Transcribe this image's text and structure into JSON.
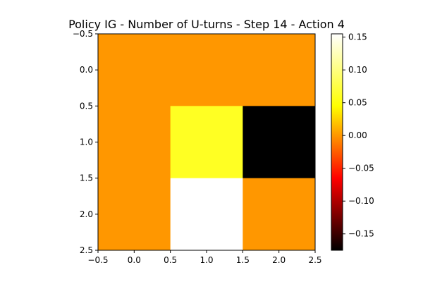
{
  "chart_data": {
    "type": "heatmap",
    "title": "Policy IG - Number of U-turns - Step 14 - Action 4",
    "xlabel": "",
    "ylabel": "",
    "x_ticks": [
      "−0.5",
      "0.0",
      "0.5",
      "1.0",
      "1.5",
      "2.0",
      "2.5"
    ],
    "y_ticks": [
      "−0.5",
      "0.0",
      "0.5",
      "1.0",
      "1.5",
      "2.0",
      "2.5"
    ],
    "xlim": [
      -0.5,
      2.5
    ],
    "ylim": [
      2.5,
      -0.5
    ],
    "grid": false,
    "rows": [
      0,
      1,
      2
    ],
    "cols": [
      0,
      1,
      2
    ],
    "values": [
      [
        0.0,
        0.0,
        0.0
      ],
      [
        0.0,
        0.06,
        -0.175
      ],
      [
        0.0,
        0.155,
        0.0
      ]
    ],
    "colormap": "hot",
    "color_range": [
      -0.175,
      0.155
    ],
    "colorbar": {
      "ticks": [
        0.15,
        0.1,
        0.05,
        0.0,
        -0.05,
        -0.1,
        -0.15
      ],
      "tick_labels": [
        "0.15",
        "0.10",
        "0.05",
        "0.00",
        "−0.05",
        "−0.10",
        "−0.15"
      ]
    }
  }
}
